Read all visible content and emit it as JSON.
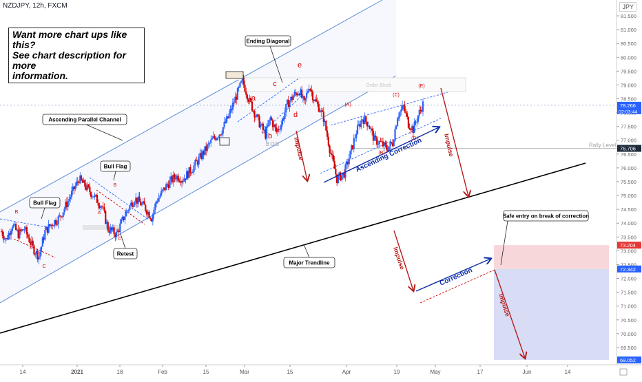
{
  "header": {
    "symbol_line": "NZDJPY, 12h, FXCM",
    "currency": "JPY"
  },
  "promo": {
    "lines": [
      "Want more chart ups like this?",
      "See chart description for more",
      "information."
    ]
  },
  "colors": {
    "up": "#2962ff",
    "down": "#d50000",
    "channel": "#5b8bd6",
    "zone_red": "#f8d7da",
    "zone_blue": "#d8dcf5",
    "trendline": "#000000",
    "arrow_red": "#b71c1c",
    "arrow_blue": "#0d2ca8"
  },
  "chart_data": {
    "type": "candlestick",
    "title": "NZDJPY, 12h, FXCM",
    "ylim": [
      68.95,
      81.75
    ],
    "y_ticks": [
      "81.500",
      "81.000",
      "80.500",
      "80.000",
      "79.500",
      "79.000",
      "78.500",
      "78.000",
      "77.500",
      "77.000",
      "76.500",
      "76.000",
      "75.500",
      "75.000",
      "74.500",
      "74.000",
      "73.500",
      "73.000",
      "72.500",
      "72.000",
      "71.500",
      "71.000",
      "70.500",
      "70.000",
      "69.500"
    ],
    "x_ticks": [
      "14",
      "2021",
      "18",
      "Feb",
      "15",
      "Mar",
      "15",
      "Apr",
      "19",
      "May",
      "17",
      "Jun",
      "14"
    ],
    "price_tags": [
      {
        "label": "78.266",
        "sub": "02:03:44",
        "value": 78.266,
        "color": "#2962ff"
      },
      {
        "label": "76.706",
        "value": 76.706,
        "color": "#1e293b"
      },
      {
        "label": "73.204",
        "value": 73.204,
        "color": "#e53935"
      },
      {
        "label": "72.342",
        "value": 72.342,
        "color": "#2962ff"
      },
      {
        "label": "69.052",
        "value": 69.052,
        "color": "#2962ff"
      }
    ],
    "levels": [
      {
        "name": "Rally Level",
        "value": 76.706
      }
    ],
    "annotations": {
      "boxed": [
        "Ascending Parallel Channel",
        "Bull Flag",
        "Bull Flag",
        "Retest",
        "Ending Diagonal",
        "Major Trendline",
        "Safe entry on break of correction"
      ],
      "red_labels": [
        "B",
        "A",
        "C",
        "B",
        "C",
        "a",
        "b",
        "c",
        "d",
        "e",
        "(A)",
        "(B)",
        "(C)",
        "(D)",
        "(E)"
      ],
      "gray_labels": [
        "BOS",
        "Order Block"
      ],
      "arrow_labels": [
        "Impulse",
        "Impulse",
        "Impulse",
        "Impulse",
        "Ascending Correction",
        "Correction"
      ]
    },
    "risk_zones": {
      "stop": 73.204,
      "entry": 72.342,
      "target": 69.052
    },
    "series": [
      {
        "name": "NZDJPY",
        "ohlc_waypoints": [
          [
            73.7,
            0
          ],
          [
            73.4,
            4
          ],
          [
            73.95,
            9
          ],
          [
            73.6,
            14
          ],
          [
            73.8,
            19
          ],
          [
            73.1,
            26
          ],
          [
            72.8,
            31
          ],
          [
            73.7,
            36
          ],
          [
            74.0,
            42
          ],
          [
            74.2,
            48
          ],
          [
            74.8,
            55
          ],
          [
            75.6,
            64
          ],
          [
            75.3,
            70
          ],
          [
            75.0,
            76
          ],
          [
            74.6,
            83
          ],
          [
            73.8,
            88
          ],
          [
            73.6,
            95
          ],
          [
            74.4,
            103
          ],
          [
            74.9,
            110
          ],
          [
            74.6,
            118
          ],
          [
            74.2,
            124
          ],
          [
            74.8,
            128
          ],
          [
            75.4,
            137
          ],
          [
            75.7,
            144
          ],
          [
            75.6,
            150
          ],
          [
            76.0,
            158
          ],
          [
            76.5,
            166
          ],
          [
            77.0,
            174
          ],
          [
            77.3,
            181
          ],
          [
            77.8,
            187
          ],
          [
            78.5,
            193
          ],
          [
            79.15,
            199
          ],
          [
            78.4,
            205
          ],
          [
            77.7,
            212
          ],
          [
            77.2,
            218
          ],
          [
            77.8,
            222
          ],
          [
            77.3,
            227
          ],
          [
            77.6,
            231
          ],
          [
            78.3,
            236
          ],
          [
            78.6,
            241
          ],
          [
            78.8,
            246
          ],
          [
            78.3,
            250
          ],
          [
            79.0,
            254
          ],
          [
            78.5,
            258
          ],
          [
            78.2,
            262
          ],
          [
            77.8,
            266
          ],
          [
            76.5,
            272
          ],
          [
            75.6,
            277
          ],
          [
            75.8,
            283
          ],
          [
            76.5,
            288
          ],
          [
            77.3,
            293
          ],
          [
            77.8,
            298
          ],
          [
            77.6,
            303
          ],
          [
            77.0,
            308
          ],
          [
            76.9,
            313
          ],
          [
            76.7,
            318
          ],
          [
            76.9,
            323
          ],
          [
            77.9,
            327
          ],
          [
            78.2,
            332
          ],
          [
            77.6,
            336
          ],
          [
            77.4,
            340
          ],
          [
            77.9,
            344
          ],
          [
            78.3,
            348
          ]
        ]
      }
    ]
  }
}
